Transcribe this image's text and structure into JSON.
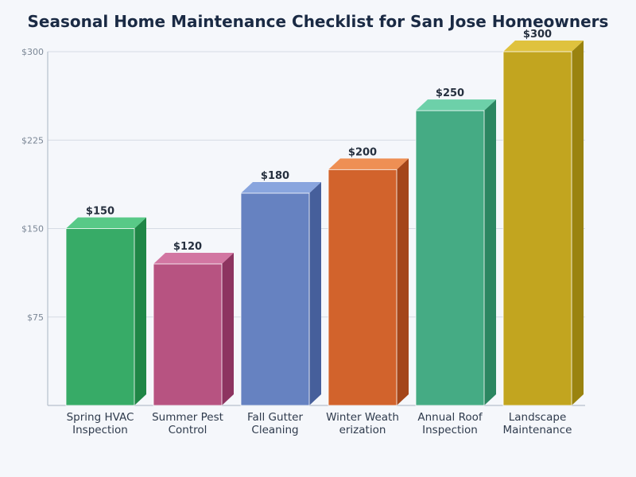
{
  "chart_data": {
    "type": "bar",
    "title": "Seasonal Home Maintenance Checklist for San Jose Homeowners",
    "xlabel": "",
    "ylabel": "",
    "categories": [
      [
        "Spring HVAC",
        "Inspection"
      ],
      [
        "Summer Pest",
        "Control"
      ],
      [
        "Fall Gutter",
        "Cleaning"
      ],
      [
        "Winter Weath",
        "erization"
      ],
      [
        "Annual Roof",
        "Inspection"
      ],
      [
        "Landscape",
        "Maintenance"
      ]
    ],
    "values": [
      150,
      120,
      180,
      200,
      250,
      300
    ],
    "data_labels": [
      "$150",
      "$120",
      "$180",
      "$200",
      "$250",
      "$300"
    ],
    "ylim": [
      0,
      300
    ],
    "yticks": [
      75,
      150,
      225,
      300
    ],
    "ytick_labels": [
      "$75",
      "$150",
      "$225",
      "$300"
    ],
    "grid": true,
    "legend": "none",
    "bar_style": "3d",
    "colors": [
      {
        "front": "#37ab67",
        "top": "#58c987",
        "side": "#1f8646"
      },
      {
        "front": "#b75381",
        "top": "#d276a2",
        "side": "#8d3460"
      },
      {
        "front": "#6682c1",
        "top": "#89a5de",
        "side": "#465f9b"
      },
      {
        "front": "#d2632c",
        "top": "#ee8f54",
        "side": "#a4461a"
      },
      {
        "front": "#45ab84",
        "top": "#6dd0a9",
        "side": "#2b8661"
      },
      {
        "front": "#c2a51f",
        "top": "#dfc23e",
        "side": "#9a830f"
      }
    ]
  }
}
